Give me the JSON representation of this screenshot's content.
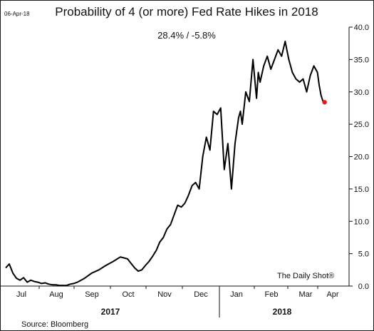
{
  "chart_data": {
    "type": "line",
    "date_label": "06-Apr-18",
    "title": "Probability of 4 (or more) Fed Rate Hikes in 2018",
    "subtitle": "28.4%  /  -5.8%",
    "watermark": "The Daily Shot®",
    "source": "Source: Bloomberg",
    "y_axis_position": "right",
    "ylim": [
      0,
      40
    ],
    "y_ticks": [
      "0.0",
      "5.0",
      "10.0",
      "15.0",
      "20.0",
      "25.0",
      "30.0",
      "35.0",
      "40.0"
    ],
    "x_months": [
      "Jul",
      "Aug",
      "Sep",
      "Oct",
      "Nov",
      "Dec",
      "Jan",
      "Feb",
      "Mar",
      "Apr"
    ],
    "x_years": [
      "2017",
      "2018"
    ],
    "grid": false,
    "series": [
      {
        "x": [
          0.0,
          0.1,
          0.2,
          0.3,
          0.4,
          0.5,
          0.6,
          0.7,
          0.8,
          0.9,
          1.0,
          1.1,
          1.2,
          1.3,
          1.4,
          1.5,
          1.6,
          1.7,
          1.8,
          1.9,
          2.0,
          2.2,
          2.4,
          2.6,
          2.8,
          3.0,
          3.2,
          3.4,
          3.5,
          3.6,
          3.7,
          3.8,
          3.9,
          4.0,
          4.1,
          4.2,
          4.3,
          4.4,
          4.5,
          4.6,
          4.7,
          4.8,
          4.9,
          5.0,
          5.1,
          5.2,
          5.3,
          5.4,
          5.5,
          5.6,
          5.7,
          5.8,
          5.9,
          6.0,
          6.1,
          6.2,
          6.3,
          6.4,
          6.5,
          6.55,
          6.6,
          6.7,
          6.8,
          6.9,
          6.95,
          7.0,
          7.05,
          7.1,
          7.2,
          7.3,
          7.4,
          7.5,
          7.6,
          7.7,
          7.8,
          7.9,
          8.0,
          8.1,
          8.2,
          8.3,
          8.4,
          8.5,
          8.6,
          8.7,
          8.75,
          8.8,
          8.85,
          8.9
        ],
        "values": [
          2.8,
          3.4,
          2.0,
          1.2,
          0.9,
          1.3,
          0.6,
          0.9,
          0.7,
          0.6,
          0.4,
          0.5,
          0.3,
          0.2,
          0.2,
          0.1,
          0.1,
          0.1,
          0.3,
          0.4,
          0.6,
          1.2,
          2.0,
          2.5,
          3.2,
          3.8,
          4.5,
          4.2,
          3.5,
          2.8,
          2.3,
          2.5,
          3.2,
          3.8,
          4.6,
          5.5,
          6.8,
          7.5,
          8.8,
          9.5,
          11.0,
          12.5,
          12.2,
          12.8,
          14.0,
          15.5,
          16.0,
          15.0,
          20.0,
          23.0,
          21.0,
          27.0,
          26.5,
          27.5,
          18.0,
          22.0,
          15.0,
          22.0,
          26.0,
          27.0,
          25.0,
          30.0,
          28.5,
          35.0,
          32.0,
          29.0,
          33.0,
          31.5,
          34.0,
          35.5,
          33.5,
          35.0,
          36.5,
          35.5,
          37.8,
          35.0,
          33.0,
          32.0,
          31.5,
          32.0,
          30.0,
          32.5,
          34.0,
          33.0,
          31.0,
          29.5,
          28.6,
          28.4
        ]
      }
    ],
    "last_point": {
      "value": 28.4,
      "color": "#e8171a"
    },
    "colors": {
      "line": "#000000",
      "marker": "#e8171a"
    }
  }
}
